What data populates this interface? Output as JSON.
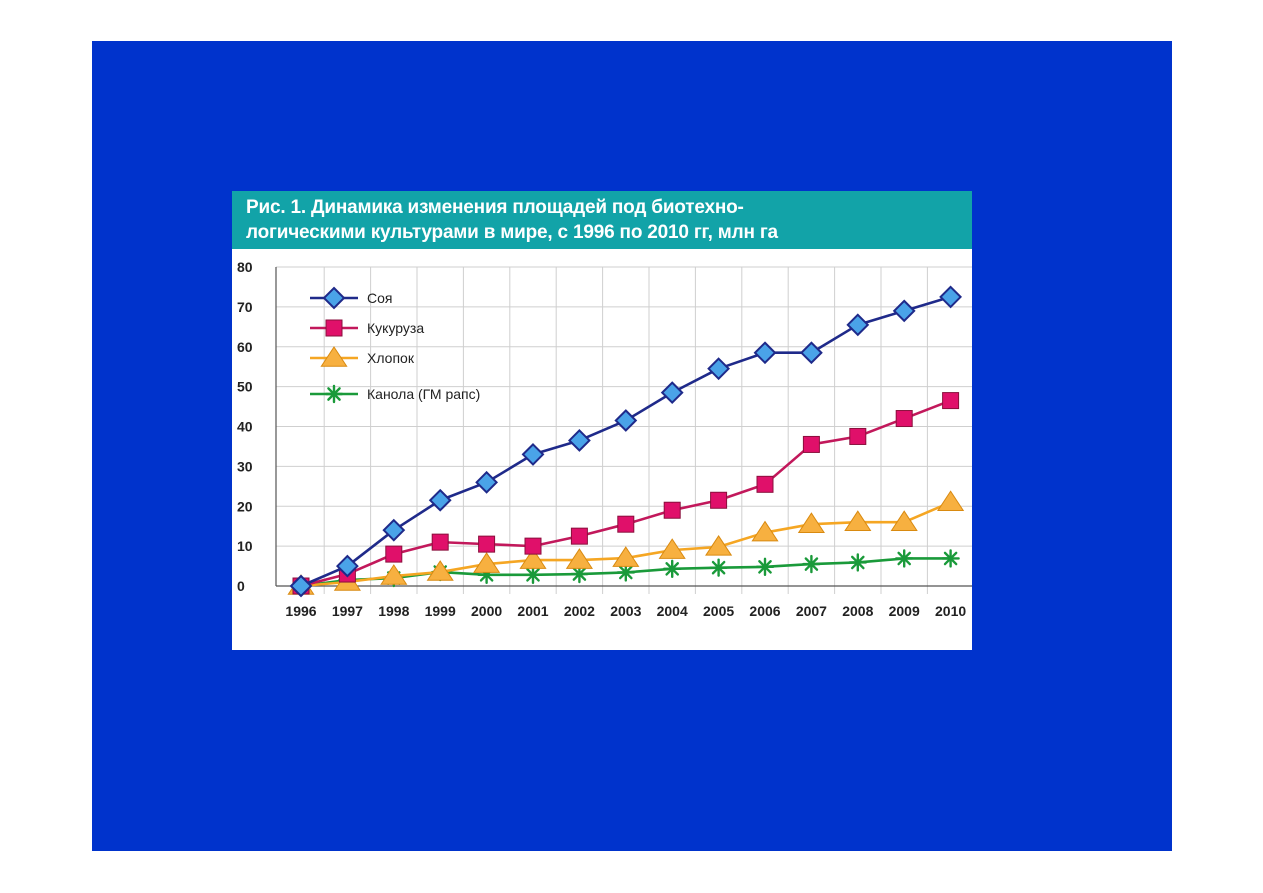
{
  "chart_data": {
    "type": "line",
    "title_lines": [
      "Рис. 1. Динамика изменения площадей под биотехно-",
      "логическими культурами в мире, с 1996 по 2010 гг, млн га"
    ],
    "x": [
      "1996",
      "1997",
      "1998",
      "1999",
      "2000",
      "2001",
      "2002",
      "2003",
      "2004",
      "2005",
      "2006",
      "2007",
      "2008",
      "2009",
      "2010"
    ],
    "yticks": [
      "0",
      "10",
      "20",
      "30",
      "40",
      "50",
      "60",
      "70",
      "80"
    ],
    "ylim": [
      0,
      80
    ],
    "grid": true,
    "legend_position": "top-left",
    "series": [
      {
        "name": "Соя",
        "color": "#1f2a8a",
        "marker_fill": "#4aa3e8",
        "marker": "diamond",
        "values": [
          0,
          5,
          14,
          21.5,
          26,
          33,
          36.5,
          41.5,
          48.5,
          54.5,
          58.5,
          58.5,
          65.5,
          69,
          72.5
        ]
      },
      {
        "name": "Кукуруза",
        "color": "#c2185b",
        "marker_fill": "#e0106a",
        "marker": "square",
        "values": [
          0,
          3,
          8,
          11,
          10.5,
          10,
          12.5,
          15.5,
          19,
          21.5,
          25.5,
          35.5,
          37.5,
          42,
          46.5
        ]
      },
      {
        "name": "Хлопок",
        "color": "#f5a623",
        "marker_fill": "#f7b040",
        "marker": "triangle",
        "values": [
          0,
          1,
          2.5,
          3.5,
          5.5,
          6.5,
          6.5,
          7,
          9,
          9.8,
          13.4,
          15.5,
          16,
          16,
          21
        ]
      },
      {
        "name": "Канола (ГМ рапс)",
        "color": "#1a9a3a",
        "marker_fill": "#1a9a3a",
        "marker": "asterisk",
        "values": [
          0,
          1.5,
          2,
          3.5,
          2.8,
          2.8,
          3,
          3.4,
          4.3,
          4.6,
          4.8,
          5.5,
          5.9,
          6.9,
          6.9
        ]
      }
    ]
  }
}
